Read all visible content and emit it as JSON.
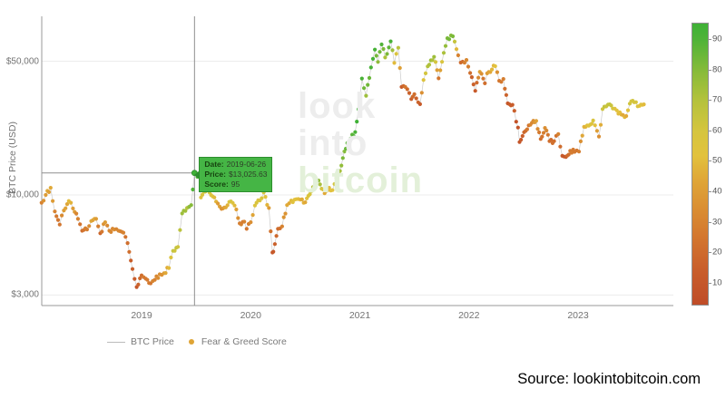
{
  "watermark": {
    "line1": "look",
    "line2": "into",
    "line3": "bitcoin"
  },
  "source_label": "Source: lookintobitcoin.com",
  "y_axis": {
    "title": "BTC Price (USD)",
    "scale": "log",
    "ticks": [
      {
        "label": "$50,000",
        "value": 50000
      },
      {
        "label": "$10,000",
        "value": 10000
      },
      {
        "label": "$3,000",
        "value": 3000
      }
    ]
  },
  "x_axis": {
    "ticks": [
      {
        "label": "2019",
        "date": "2019-01-01"
      },
      {
        "label": "2020",
        "date": "2020-01-01"
      },
      {
        "label": "2021",
        "date": "2021-01-01"
      },
      {
        "label": "2022",
        "date": "2022-01-01"
      },
      {
        "label": "2023",
        "date": "2023-01-01"
      }
    ]
  },
  "legend": {
    "line_label": "BTC Price",
    "dot_label": "Fear & Greed Score",
    "line_color": "#bbbbbb",
    "dot_color": "#dfa435"
  },
  "tooltip": {
    "date_label": "Date:",
    "date_value": "2019-06-26",
    "price_label": "Price:",
    "price_value": "$13,025.63",
    "score_label": "Score:",
    "score_value": "95",
    "bg_color": "#45b545",
    "border_color": "#2d8e2d"
  },
  "crosshair": {
    "date": "2019-06-26",
    "price": 13025.63,
    "score": 95
  },
  "colorbar": {
    "vmin": 3,
    "vmax": 95.5,
    "ticks": [
      90,
      80,
      70,
      60,
      50,
      40,
      30,
      20,
      10
    ]
  },
  "color_scale": [
    [
      3,
      "#bf4c28"
    ],
    [
      15,
      "#c95f2b"
    ],
    [
      25,
      "#d3762f"
    ],
    [
      35,
      "#da8f33"
    ],
    [
      45,
      "#e0a938"
    ],
    [
      52,
      "#e2c23d"
    ],
    [
      60,
      "#d5c53f"
    ],
    [
      70,
      "#b5c23c"
    ],
    [
      80,
      "#86bb39"
    ],
    [
      90,
      "#50b338"
    ],
    [
      95,
      "#3fb136"
    ]
  ],
  "chart_data": {
    "type": "scatter",
    "title": "",
    "xlabel": "",
    "ylabel": "BTC Price (USD)",
    "y_scale": "log",
    "ylim": [
      2500,
      90000
    ],
    "x_range": [
      "2018-02-01",
      "2023-11-15"
    ],
    "color_by": "fear_greed_score",
    "legend_position": "bottom",
    "grid": true,
    "series": [
      {
        "name": "BTC Price / Fear & Greed Score",
        "columns": [
          "date",
          "price_usd",
          "fear_greed_score"
        ],
        "points": [
          [
            "2018-02-01",
            9100,
            30
          ],
          [
            "2018-02-15",
            10000,
            40
          ],
          [
            "2018-03-01",
            10900,
            45
          ],
          [
            "2018-03-15",
            8200,
            30
          ],
          [
            "2018-04-01",
            7000,
            25
          ],
          [
            "2018-04-15",
            8300,
            40
          ],
          [
            "2018-05-01",
            9300,
            50
          ],
          [
            "2018-05-15",
            8500,
            40
          ],
          [
            "2018-06-01",
            7500,
            30
          ],
          [
            "2018-06-15",
            6500,
            22
          ],
          [
            "2018-07-01",
            6600,
            28
          ],
          [
            "2018-07-15",
            7300,
            45
          ],
          [
            "2018-08-01",
            7500,
            40
          ],
          [
            "2018-08-15",
            6300,
            18
          ],
          [
            "2018-09-01",
            7200,
            40
          ],
          [
            "2018-09-15",
            6500,
            32
          ],
          [
            "2018-10-01",
            6600,
            35
          ],
          [
            "2018-10-15",
            6500,
            32
          ],
          [
            "2018-11-01",
            6350,
            30
          ],
          [
            "2018-11-15",
            5600,
            22
          ],
          [
            "2018-12-01",
            4100,
            15
          ],
          [
            "2018-12-15",
            3300,
            10
          ],
          [
            "2019-01-01",
            3800,
            22
          ],
          [
            "2019-01-15",
            3650,
            25
          ],
          [
            "2019-02-01",
            3450,
            25
          ],
          [
            "2019-02-15",
            3600,
            30
          ],
          [
            "2019-03-01",
            3850,
            35
          ],
          [
            "2019-03-15",
            3900,
            40
          ],
          [
            "2019-04-01",
            4150,
            50
          ],
          [
            "2019-04-15",
            5100,
            65
          ],
          [
            "2019-05-01",
            5350,
            62
          ],
          [
            "2019-05-15",
            8000,
            75
          ],
          [
            "2019-06-01",
            8550,
            70
          ],
          [
            "2019-06-15",
            8850,
            80
          ],
          [
            "2019-06-26",
            13025.63,
            95
          ],
          [
            "2019-07-10",
            12600,
            85
          ],
          [
            "2019-07-17",
            9700,
            55
          ],
          [
            "2019-08-01",
            10400,
            65
          ],
          [
            "2019-08-15",
            10300,
            60
          ],
          [
            "2019-09-01",
            9700,
            50
          ],
          [
            "2019-09-25",
            8450,
            35
          ],
          [
            "2019-10-09",
            8600,
            45
          ],
          [
            "2019-10-26",
            9250,
            60
          ],
          [
            "2019-11-08",
            8800,
            50
          ],
          [
            "2019-11-25",
            7100,
            28
          ],
          [
            "2019-12-10",
            7250,
            30
          ],
          [
            "2019-12-18",
            6650,
            25
          ],
          [
            "2020-01-01",
            7200,
            35
          ],
          [
            "2020-01-15",
            8800,
            55
          ],
          [
            "2020-02-01",
            9350,
            58
          ],
          [
            "2020-02-14",
            10300,
            60
          ],
          [
            "2020-03-01",
            8550,
            40
          ],
          [
            "2020-03-13",
            5000,
            10
          ],
          [
            "2020-03-16",
            5050,
            12
          ],
          [
            "2020-04-01",
            6650,
            20
          ],
          [
            "2020-04-15",
            6850,
            30
          ],
          [
            "2020-05-01",
            8850,
            45
          ],
          [
            "2020-05-15",
            9350,
            50
          ],
          [
            "2020-06-01",
            9500,
            52
          ],
          [
            "2020-06-15",
            9450,
            48
          ],
          [
            "2020-07-01",
            9150,
            45
          ],
          [
            "2020-07-27",
            11000,
            70
          ],
          [
            "2020-08-15",
            11900,
            78
          ],
          [
            "2020-09-05",
            10200,
            45
          ],
          [
            "2020-09-20",
            10900,
            50
          ],
          [
            "2020-10-01",
            10600,
            52
          ],
          [
            "2020-10-21",
            12800,
            70
          ],
          [
            "2020-11-05",
            15600,
            82
          ],
          [
            "2020-11-20",
            18650,
            88
          ],
          [
            "2020-12-01",
            19700,
            90
          ],
          [
            "2020-12-16",
            21300,
            92
          ],
          [
            "2021-01-02",
            32100,
            95
          ],
          [
            "2021-01-08",
            40600,
            92
          ],
          [
            "2021-01-22",
            33000,
            75
          ],
          [
            "2021-02-08",
            46400,
            92
          ],
          [
            "2021-02-21",
            57500,
            93
          ],
          [
            "2021-03-01",
            49600,
            78
          ],
          [
            "2021-03-13",
            61200,
            90
          ],
          [
            "2021-03-25",
            52300,
            72
          ],
          [
            "2021-04-13",
            63500,
            92
          ],
          [
            "2021-04-25",
            49000,
            50
          ],
          [
            "2021-05-08",
            58800,
            68
          ],
          [
            "2021-05-19",
            36700,
            12
          ],
          [
            "2021-06-01",
            36700,
            25
          ],
          [
            "2021-06-21",
            31700,
            15
          ],
          [
            "2021-07-01",
            33600,
            22
          ],
          [
            "2021-07-20",
            29800,
            12
          ],
          [
            "2021-08-01",
            39900,
            55
          ],
          [
            "2021-08-15",
            47000,
            70
          ],
          [
            "2021-09-06",
            52700,
            75
          ],
          [
            "2021-09-21",
            40700,
            25
          ],
          [
            "2021-10-08",
            55300,
            72
          ],
          [
            "2021-10-20",
            66000,
            82
          ],
          [
            "2021-11-08",
            67500,
            82
          ],
          [
            "2021-11-26",
            53700,
            30
          ],
          [
            "2021-12-04",
            49200,
            20
          ],
          [
            "2021-12-23",
            50800,
            32
          ],
          [
            "2022-01-05",
            43400,
            22
          ],
          [
            "2022-01-22",
            35000,
            12
          ],
          [
            "2022-02-07",
            44000,
            42
          ],
          [
            "2022-02-24",
            38300,
            22
          ],
          [
            "2022-03-01",
            43200,
            40
          ],
          [
            "2022-03-28",
            47100,
            52
          ],
          [
            "2022-04-11",
            39500,
            25
          ],
          [
            "2022-04-25",
            40400,
            28
          ],
          [
            "2022-05-09",
            30100,
            10
          ],
          [
            "2022-05-25",
            29600,
            14
          ],
          [
            "2022-06-13",
            22500,
            8
          ],
          [
            "2022-06-18",
            18900,
            9
          ],
          [
            "2022-07-08",
            21600,
            20
          ],
          [
            "2022-07-29",
            23800,
            32
          ],
          [
            "2022-08-13",
            24400,
            42
          ],
          [
            "2022-08-28",
            19600,
            22
          ],
          [
            "2022-09-12",
            22400,
            35
          ],
          [
            "2022-09-27",
            19100,
            22
          ],
          [
            "2022-10-12",
            19100,
            22
          ],
          [
            "2022-10-26",
            20800,
            30
          ],
          [
            "2022-11-09",
            16000,
            12
          ],
          [
            "2022-11-21",
            15800,
            14
          ],
          [
            "2022-12-05",
            17000,
            26
          ],
          [
            "2022-12-20",
            16800,
            26
          ],
          [
            "2023-01-04",
            16850,
            28
          ],
          [
            "2023-01-21",
            22700,
            48
          ],
          [
            "2023-02-06",
            23000,
            52
          ],
          [
            "2023-02-21",
            24500,
            58
          ],
          [
            "2023-03-10",
            20200,
            35
          ],
          [
            "2023-03-22",
            28100,
            62
          ],
          [
            "2023-04-10",
            29650,
            65
          ],
          [
            "2023-04-26",
            28300,
            60
          ],
          [
            "2023-05-09",
            27650,
            52
          ],
          [
            "2023-05-24",
            26300,
            48
          ],
          [
            "2023-06-10",
            25850,
            45
          ],
          [
            "2023-06-22",
            30000,
            62
          ],
          [
            "2023-07-06",
            30500,
            60
          ],
          [
            "2023-07-24",
            29200,
            52
          ],
          [
            "2023-08-08",
            29750,
            50
          ]
        ]
      }
    ]
  }
}
